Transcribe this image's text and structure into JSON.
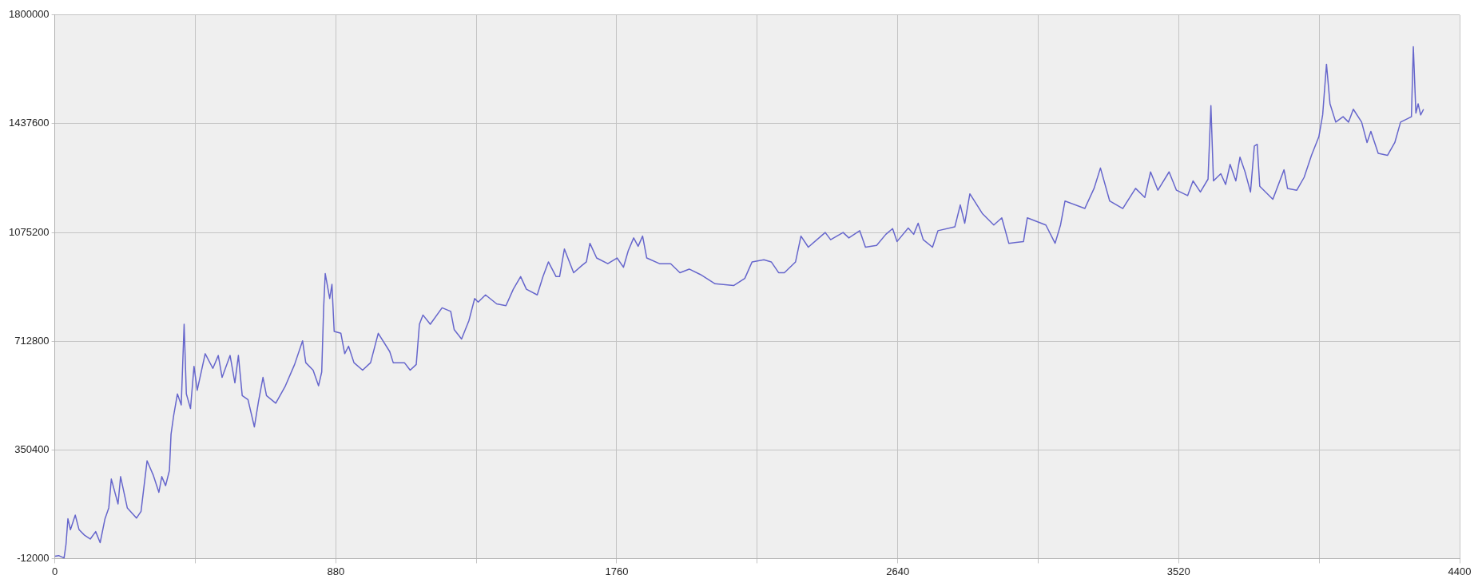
{
  "chart_data": {
    "type": "line",
    "x": [
      0,
      12,
      29,
      35,
      41,
      49,
      64,
      76,
      93,
      111,
      128,
      142,
      157,
      169,
      177,
      198,
      206,
      227,
      256,
      270,
      289,
      308,
      326,
      335,
      347,
      359,
      364,
      372,
      384,
      396,
      405,
      412,
      425,
      436,
      446,
      471,
      495,
      512,
      524,
      549,
      564,
      575,
      587,
      605,
      625,
      638,
      652,
      663,
      692,
      721,
      751,
      776,
      786,
      809,
      826,
      836,
      842,
      847,
      861,
      868,
      875,
      896,
      908,
      920,
      937,
      964,
      989,
      1013,
      1049,
      1060,
      1095,
      1113,
      1132,
      1142,
      1153,
      1176,
      1213,
      1240,
      1251,
      1274,
      1297,
      1315,
      1326,
      1349,
      1384,
      1413,
      1436,
      1459,
      1477,
      1511,
      1529,
      1546,
      1570,
      1581,
      1596,
      1625,
      1651,
      1665,
      1676,
      1697,
      1732,
      1761,
      1781,
      1796,
      1813,
      1827,
      1841,
      1854,
      1894,
      1929,
      1958,
      1987,
      2022,
      2068,
      2126,
      2161,
      2184,
      2221,
      2244,
      2267,
      2285,
      2320,
      2337,
      2360,
      2413,
      2430,
      2469,
      2487,
      2521,
      2539,
      2574,
      2603,
      2624,
      2638,
      2673,
      2690,
      2704,
      2720,
      2749,
      2766,
      2819,
      2836,
      2850,
      2866,
      2906,
      2941,
      2966,
      2988,
      3034,
      3046,
      3075,
      3104,
      3133,
      3150,
      3164,
      3226,
      3255,
      3275,
      3304,
      3345,
      3385,
      3414,
      3432,
      3455,
      3490,
      3513,
      3548,
      3565,
      3588,
      3612,
      3621,
      3629,
      3652,
      3667,
      3681,
      3699,
      3712,
      3728,
      3745,
      3757,
      3766,
      3774,
      3815,
      3850,
      3861,
      3890,
      3913,
      3936,
      3959,
      3971,
      3983,
      3994,
      4012,
      4035,
      4052,
      4067,
      4093,
      4110,
      4122,
      4145,
      4174,
      4197,
      4215,
      4238,
      4249,
      4255,
      4263,
      4270,
      4278,
      4287
    ],
    "series": [
      {
        "color": "#6666cc",
        "values": [
          -4000,
          -2000,
          -10000,
          35000,
          121000,
          84000,
          133000,
          84000,
          66000,
          53000,
          78000,
          41000,
          120000,
          157000,
          253000,
          170000,
          261000,
          157000,
          123000,
          145000,
          314000,
          267000,
          209000,
          261000,
          231000,
          282000,
          402000,
          463000,
          537000,
          500000,
          769000,
          537000,
          488000,
          629000,
          549000,
          671000,
          622000,
          665000,
          592000,
          665000,
          574000,
          665000,
          531000,
          518000,
          427000,
          512000,
          592000,
          531000,
          506000,
          561000,
          635000,
          714000,
          641000,
          616000,
          564000,
          610000,
          824000,
          938000,
          855000,
          902000,
          745000,
          739000,
          671000,
          696000,
          641000,
          616000,
          641000,
          739000,
          678000,
          641000,
          641000,
          616000,
          635000,
          769000,
          800000,
          769000,
          824000,
          812000,
          751000,
          720000,
          781000,
          855000,
          843000,
          867000,
          837000,
          831000,
          886000,
          928000,
          886000,
          867000,
          928000,
          977000,
          928000,
          928000,
          1020000,
          941000,
          965000,
          977000,
          1039000,
          990000,
          971000,
          990000,
          959000,
          1014000,
          1057000,
          1029000,
          1063000,
          990000,
          971000,
          971000,
          941000,
          953000,
          935000,
          904000,
          898000,
          922000,
          977000,
          984000,
          977000,
          941000,
          941000,
          977000,
          1063000,
          1026000,
          1075000,
          1051000,
          1075000,
          1057000,
          1081000,
          1026000,
          1032000,
          1069000,
          1088000,
          1045000,
          1090000,
          1069000,
          1106000,
          1051000,
          1026000,
          1081000,
          1094000,
          1167000,
          1106000,
          1204000,
          1137000,
          1100000,
          1124000,
          1039000,
          1045000,
          1124000,
          1112000,
          1100000,
          1039000,
          1100000,
          1180000,
          1155000,
          1222000,
          1290000,
          1180000,
          1155000,
          1222000,
          1192000,
          1277000,
          1216000,
          1277000,
          1216000,
          1198000,
          1247000,
          1210000,
          1253000,
          1498000,
          1247000,
          1271000,
          1235000,
          1302000,
          1247000,
          1326000,
          1277000,
          1210000,
          1363000,
          1369000,
          1229000,
          1186000,
          1284000,
          1222000,
          1216000,
          1259000,
          1332000,
          1394000,
          1467000,
          1636000,
          1504000,
          1443000,
          1461000,
          1443000,
          1486000,
          1443000,
          1375000,
          1412000,
          1339000,
          1332000,
          1375000,
          1443000,
          1455000,
          1461000,
          1694000,
          1473000,
          1504000,
          1467000,
          1486000
        ]
      }
    ],
    "xlim": [
      0,
      4400
    ],
    "xticks": [
      0,
      {
        "value": 440,
        "label": null
      },
      880,
      {
        "value": 1320,
        "label": null
      },
      1760,
      {
        "value": 2200,
        "label": null
      },
      2640,
      {
        "value": 3080,
        "label": null
      },
      3520,
      {
        "value": 3960,
        "label": null
      },
      4400
    ],
    "ylim": [
      -12000,
      1800000
    ],
    "yticks": [
      -12000,
      350400,
      712800,
      1075200,
      1437600,
      1800000
    ],
    "grid": true,
    "legend": false,
    "marker": "none",
    "line_style": "solid"
  }
}
